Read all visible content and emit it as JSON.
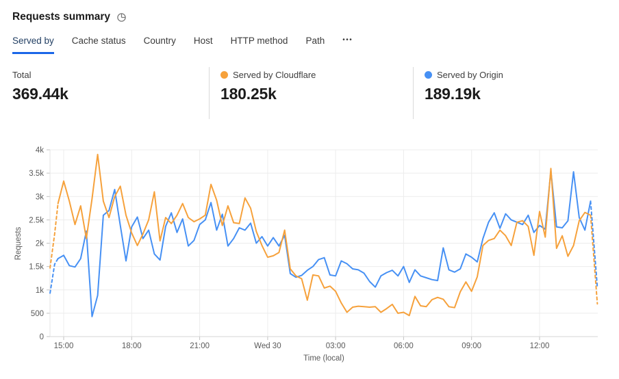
{
  "header": {
    "title": "Requests summary",
    "icon": "pie-chart-icon"
  },
  "tabs": {
    "items": [
      {
        "label": "Served by",
        "slug": "served-by",
        "active": true
      },
      {
        "label": "Cache status",
        "slug": "cache-status",
        "active": false
      },
      {
        "label": "Country",
        "slug": "country",
        "active": false
      },
      {
        "label": "Host",
        "slug": "host",
        "active": false
      },
      {
        "label": "HTTP method",
        "slug": "http-method",
        "active": false
      },
      {
        "label": "Path",
        "slug": "path",
        "active": false
      }
    ],
    "overflow_label": "•••"
  },
  "stats": [
    {
      "label": "Total",
      "value": "369.44k"
    },
    {
      "label": "Served by Cloudflare",
      "value": "180.25k",
      "dot_color": "#F6A13B"
    },
    {
      "label": "Served by Origin",
      "value": "189.19k",
      "dot_color": "#4690F4"
    }
  ],
  "colors": {
    "cloudflare": "#F6A13B",
    "origin": "#4690F4",
    "active_tab_underline": "#1a66e8"
  },
  "chart_data": {
    "type": "line",
    "title": "Requests summary",
    "xlabel": "Time (local)",
    "ylabel": "Requests",
    "ylim": [
      0,
      4000
    ],
    "grid": true,
    "legend_position": "stat-cards-above",
    "x_unit_note": "decimal hours, local time; 24 = Wed 30 midnight; points every 15 min",
    "xlim": [
      14.35,
      38.6
    ],
    "yticks": [
      {
        "v": 0,
        "label": "0"
      },
      {
        "v": 500,
        "label": "500"
      },
      {
        "v": 1000,
        "label": "1k"
      },
      {
        "v": 1500,
        "label": "1.5k"
      },
      {
        "v": 2000,
        "label": "2k"
      },
      {
        "v": 2500,
        "label": "2.5k"
      },
      {
        "v": 3000,
        "label": "3k"
      },
      {
        "v": 3500,
        "label": "3.5k"
      },
      {
        "v": 4000,
        "label": "4k"
      }
    ],
    "xticks": [
      {
        "t": 15,
        "label": "15:00"
      },
      {
        "t": 18,
        "label": "18:00"
      },
      {
        "t": 21,
        "label": "21:00"
      },
      {
        "t": 24,
        "label": "Wed 30"
      },
      {
        "t": 27,
        "label": "03:00"
      },
      {
        "t": 30,
        "label": "06:00"
      },
      {
        "t": 33,
        "label": "09:00"
      },
      {
        "t": 36,
        "label": "12:00"
      }
    ],
    "series": [
      {
        "name": "Served by Cloudflare",
        "slug": "cloudflare",
        "color": "#F6A13B",
        "total": "180.25k",
        "dash_head_points": 3,
        "dash_tail_points": 2,
        "points": [
          [
            14.4,
            1470
          ],
          [
            14.6,
            2200
          ],
          [
            14.75,
            2850
          ],
          [
            15,
            3330
          ],
          [
            15.25,
            2900
          ],
          [
            15.5,
            2400
          ],
          [
            15.75,
            2800
          ],
          [
            16,
            2100
          ],
          [
            16.25,
            2950
          ],
          [
            16.5,
            3900
          ],
          [
            16.75,
            2900
          ],
          [
            17,
            2550
          ],
          [
            17.25,
            3000
          ],
          [
            17.5,
            3220
          ],
          [
            17.75,
            2600
          ],
          [
            18,
            2220
          ],
          [
            18.25,
            1950
          ],
          [
            18.5,
            2200
          ],
          [
            18.75,
            2500
          ],
          [
            19,
            3100
          ],
          [
            19.25,
            2050
          ],
          [
            19.5,
            2550
          ],
          [
            19.75,
            2420
          ],
          [
            20,
            2600
          ],
          [
            20.25,
            2850
          ],
          [
            20.5,
            2550
          ],
          [
            20.75,
            2460
          ],
          [
            21,
            2520
          ],
          [
            21.25,
            2600
          ],
          [
            21.5,
            3260
          ],
          [
            21.75,
            2920
          ],
          [
            22,
            2380
          ],
          [
            22.25,
            2800
          ],
          [
            22.5,
            2440
          ],
          [
            22.75,
            2420
          ],
          [
            23,
            2970
          ],
          [
            23.25,
            2750
          ],
          [
            23.5,
            2250
          ],
          [
            23.75,
            1950
          ],
          [
            24,
            1700
          ],
          [
            24.25,
            1730
          ],
          [
            24.5,
            1800
          ],
          [
            24.75,
            2280
          ],
          [
            25,
            1450
          ],
          [
            25.25,
            1300
          ],
          [
            25.5,
            1240
          ],
          [
            25.75,
            780
          ],
          [
            26,
            1320
          ],
          [
            26.25,
            1300
          ],
          [
            26.5,
            1040
          ],
          [
            26.75,
            1080
          ],
          [
            27,
            970
          ],
          [
            27.25,
            720
          ],
          [
            27.5,
            520
          ],
          [
            27.75,
            630
          ],
          [
            28,
            650
          ],
          [
            28.25,
            640
          ],
          [
            28.5,
            630
          ],
          [
            28.75,
            640
          ],
          [
            29,
            520
          ],
          [
            29.25,
            600
          ],
          [
            29.5,
            690
          ],
          [
            29.75,
            500
          ],
          [
            30,
            520
          ],
          [
            30.25,
            450
          ],
          [
            30.5,
            860
          ],
          [
            30.75,
            660
          ],
          [
            31,
            640
          ],
          [
            31.25,
            790
          ],
          [
            31.5,
            840
          ],
          [
            31.75,
            800
          ],
          [
            32,
            640
          ],
          [
            32.25,
            620
          ],
          [
            32.5,
            960
          ],
          [
            32.75,
            1170
          ],
          [
            33,
            970
          ],
          [
            33.25,
            1280
          ],
          [
            33.5,
            1950
          ],
          [
            33.75,
            2060
          ],
          [
            34,
            2100
          ],
          [
            34.25,
            2280
          ],
          [
            34.5,
            2160
          ],
          [
            34.75,
            1950
          ],
          [
            35,
            2450
          ],
          [
            35.25,
            2480
          ],
          [
            35.5,
            2360
          ],
          [
            35.75,
            1740
          ],
          [
            36,
            2680
          ],
          [
            36.25,
            2130
          ],
          [
            36.5,
            3600
          ],
          [
            36.75,
            1890
          ],
          [
            37,
            2160
          ],
          [
            37.25,
            1720
          ],
          [
            37.5,
            1950
          ],
          [
            37.75,
            2480
          ],
          [
            38,
            2660
          ],
          [
            38.25,
            2600
          ],
          [
            38.55,
            700
          ]
        ]
      },
      {
        "name": "Served by Origin",
        "slug": "origin",
        "color": "#4690F4",
        "total": "189.19k",
        "dash_head_points": 3,
        "dash_tail_points": 2,
        "points": [
          [
            14.4,
            930
          ],
          [
            14.6,
            1550
          ],
          [
            14.75,
            1670
          ],
          [
            15,
            1740
          ],
          [
            15.25,
            1520
          ],
          [
            15.5,
            1490
          ],
          [
            15.75,
            1670
          ],
          [
            16,
            2260
          ],
          [
            16.25,
            430
          ],
          [
            16.5,
            880
          ],
          [
            16.75,
            2600
          ],
          [
            17,
            2700
          ],
          [
            17.25,
            3150
          ],
          [
            17.5,
            2380
          ],
          [
            17.75,
            1620
          ],
          [
            18,
            2350
          ],
          [
            18.25,
            2560
          ],
          [
            18.5,
            2100
          ],
          [
            18.75,
            2280
          ],
          [
            19,
            1770
          ],
          [
            19.25,
            1640
          ],
          [
            19.5,
            2360
          ],
          [
            19.75,
            2650
          ],
          [
            20,
            2230
          ],
          [
            20.25,
            2520
          ],
          [
            20.5,
            1940
          ],
          [
            20.75,
            2060
          ],
          [
            21,
            2400
          ],
          [
            21.25,
            2500
          ],
          [
            21.5,
            2870
          ],
          [
            21.75,
            2280
          ],
          [
            22,
            2620
          ],
          [
            22.25,
            1940
          ],
          [
            22.5,
            2100
          ],
          [
            22.75,
            2330
          ],
          [
            23,
            2280
          ],
          [
            23.25,
            2430
          ],
          [
            23.5,
            2000
          ],
          [
            23.75,
            2140
          ],
          [
            24,
            1940
          ],
          [
            24.25,
            2120
          ],
          [
            24.5,
            1940
          ],
          [
            24.75,
            2170
          ],
          [
            25,
            1350
          ],
          [
            25.25,
            1270
          ],
          [
            25.5,
            1310
          ],
          [
            25.75,
            1420
          ],
          [
            26,
            1500
          ],
          [
            26.25,
            1650
          ],
          [
            26.5,
            1690
          ],
          [
            26.75,
            1320
          ],
          [
            27,
            1300
          ],
          [
            27.25,
            1620
          ],
          [
            27.5,
            1560
          ],
          [
            27.75,
            1450
          ],
          [
            28,
            1430
          ],
          [
            28.25,
            1360
          ],
          [
            28.5,
            1180
          ],
          [
            28.75,
            1060
          ],
          [
            29,
            1300
          ],
          [
            29.25,
            1370
          ],
          [
            29.5,
            1420
          ],
          [
            29.75,
            1300
          ],
          [
            30,
            1500
          ],
          [
            30.25,
            1160
          ],
          [
            30.5,
            1430
          ],
          [
            30.75,
            1300
          ],
          [
            31,
            1260
          ],
          [
            31.25,
            1220
          ],
          [
            31.5,
            1200
          ],
          [
            31.75,
            1900
          ],
          [
            32,
            1430
          ],
          [
            32.25,
            1380
          ],
          [
            32.5,
            1450
          ],
          [
            32.75,
            1770
          ],
          [
            33,
            1700
          ],
          [
            33.25,
            1600
          ],
          [
            33.5,
            2100
          ],
          [
            33.75,
            2450
          ],
          [
            34,
            2650
          ],
          [
            34.25,
            2320
          ],
          [
            34.5,
            2630
          ],
          [
            34.75,
            2500
          ],
          [
            35,
            2450
          ],
          [
            35.25,
            2400
          ],
          [
            35.5,
            2600
          ],
          [
            35.75,
            2230
          ],
          [
            36,
            2380
          ],
          [
            36.25,
            2300
          ],
          [
            36.5,
            3550
          ],
          [
            36.75,
            2350
          ],
          [
            37,
            2330
          ],
          [
            37.25,
            2480
          ],
          [
            37.5,
            3530
          ],
          [
            37.75,
            2550
          ],
          [
            38,
            2280
          ],
          [
            38.25,
            2900
          ],
          [
            38.55,
            1050
          ]
        ]
      }
    ]
  }
}
